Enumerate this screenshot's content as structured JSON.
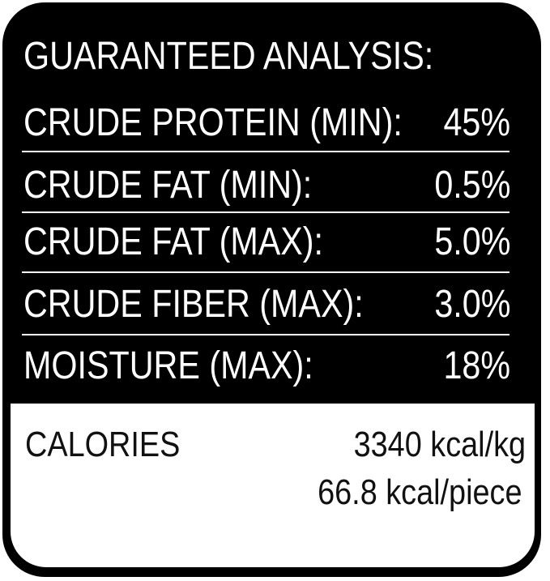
{
  "title": "GUARANTEED ANALYSIS:",
  "rows": [
    {
      "label": "CRUDE PROTEIN (MIN):",
      "value": "45%"
    },
    {
      "label": "CRUDE FAT (MIN):",
      "value": "0.5%"
    },
    {
      "label": "CRUDE FAT (MAX):",
      "value": "5.0%"
    },
    {
      "label": "CRUDE FIBER (MAX):",
      "value": "3.0%"
    },
    {
      "label": "MOISTURE (MAX):",
      "value": "18%"
    }
  ],
  "calories": {
    "label": "CALORIES",
    "per_kg": "3340 kcal/kg",
    "per_piece": "66.8 kcal/piece"
  }
}
